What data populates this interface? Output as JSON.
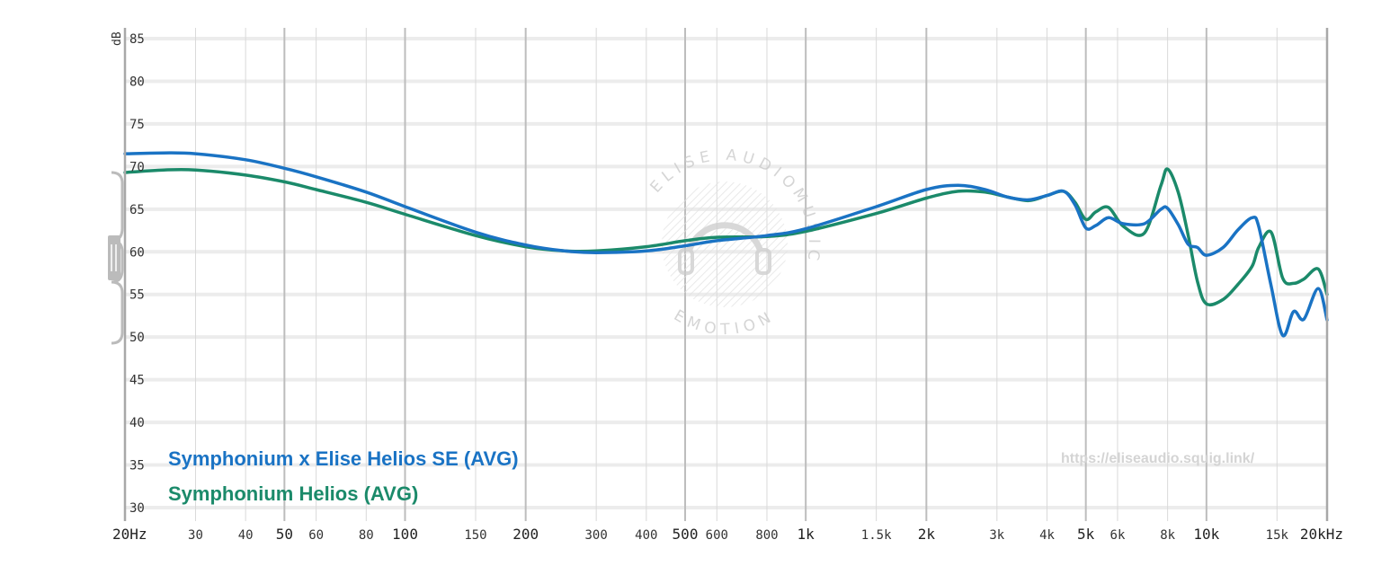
{
  "chart_data": {
    "type": "line",
    "title": "",
    "xlabel": "Hz",
    "ylabel": "dB",
    "x_scale": "log",
    "xlim": [
      20,
      20000
    ],
    "ylim": [
      30,
      86
    ],
    "grid": true,
    "x_ticks": [
      {
        "value": 20,
        "label": "20Hz",
        "major": true
      },
      {
        "value": 30,
        "label": "30",
        "major": false
      },
      {
        "value": 40,
        "label": "40",
        "major": false
      },
      {
        "value": 50,
        "label": "50",
        "major": true
      },
      {
        "value": 60,
        "label": "60",
        "major": false
      },
      {
        "value": 80,
        "label": "80",
        "major": false
      },
      {
        "value": 100,
        "label": "100",
        "major": true
      },
      {
        "value": 150,
        "label": "150",
        "major": false
      },
      {
        "value": 200,
        "label": "200",
        "major": true
      },
      {
        "value": 300,
        "label": "300",
        "major": false
      },
      {
        "value": 400,
        "label": "400",
        "major": false
      },
      {
        "value": 500,
        "label": "500",
        "major": true
      },
      {
        "value": 600,
        "label": "600",
        "major": false
      },
      {
        "value": 800,
        "label": "800",
        "major": false
      },
      {
        "value": 1000,
        "label": "1k",
        "major": true
      },
      {
        "value": 1500,
        "label": "1.5k",
        "major": false
      },
      {
        "value": 2000,
        "label": "2k",
        "major": true
      },
      {
        "value": 3000,
        "label": "3k",
        "major": false
      },
      {
        "value": 4000,
        "label": "4k",
        "major": false
      },
      {
        "value": 5000,
        "label": "5k",
        "major": true
      },
      {
        "value": 6000,
        "label": "6k",
        "major": false
      },
      {
        "value": 8000,
        "label": "8k",
        "major": false
      },
      {
        "value": 10000,
        "label": "10k",
        "major": true
      },
      {
        "value": 15000,
        "label": "15k",
        "major": false
      },
      {
        "value": 20000,
        "label": "20kHz",
        "major": true
      }
    ],
    "y_ticks": [
      30,
      35,
      40,
      45,
      50,
      55,
      60,
      65,
      70,
      75,
      80,
      85
    ],
    "legend_position": "bottom-left",
    "series": [
      {
        "name": "Symphonium x Elise Helios SE (AVG)",
        "color": "#1a73c4",
        "points": [
          [
            20,
            71.5
          ],
          [
            25,
            71.6
          ],
          [
            30,
            71.5
          ],
          [
            40,
            70.8
          ],
          [
            50,
            69.8
          ],
          [
            60,
            68.8
          ],
          [
            80,
            67.0
          ],
          [
            100,
            65.3
          ],
          [
            150,
            62.3
          ],
          [
            200,
            60.8
          ],
          [
            250,
            60.1
          ],
          [
            300,
            59.9
          ],
          [
            400,
            60.1
          ],
          [
            500,
            60.7
          ],
          [
            600,
            61.3
          ],
          [
            800,
            61.9
          ],
          [
            1000,
            62.7
          ],
          [
            1500,
            65.3
          ],
          [
            2000,
            67.3
          ],
          [
            2400,
            67.8
          ],
          [
            2800,
            67.3
          ],
          [
            3200,
            66.4
          ],
          [
            3600,
            66.1
          ],
          [
            4000,
            66.6
          ],
          [
            4400,
            67.1
          ],
          [
            4700,
            65.5
          ],
          [
            5000,
            62.8
          ],
          [
            5300,
            63.1
          ],
          [
            5700,
            64.0
          ],
          [
            6200,
            63.3
          ],
          [
            7000,
            63.3
          ],
          [
            7700,
            65.0
          ],
          [
            8000,
            65.1
          ],
          [
            8500,
            63.2
          ],
          [
            9000,
            60.9
          ],
          [
            9500,
            60.5
          ],
          [
            10000,
            59.6
          ],
          [
            11000,
            60.5
          ],
          [
            12000,
            62.6
          ],
          [
            13000,
            64.0
          ],
          [
            13500,
            63.0
          ],
          [
            14500,
            56.0
          ],
          [
            15500,
            50.2
          ],
          [
            16500,
            53.0
          ],
          [
            17500,
            52.1
          ],
          [
            19000,
            55.7
          ],
          [
            20000,
            52.0
          ]
        ]
      },
      {
        "name": "Symphonium Helios (AVG)",
        "color": "#1b8a6a",
        "points": [
          [
            20,
            69.3
          ],
          [
            25,
            69.6
          ],
          [
            30,
            69.6
          ],
          [
            40,
            69.0
          ],
          [
            50,
            68.2
          ],
          [
            60,
            67.3
          ],
          [
            80,
            65.8
          ],
          [
            100,
            64.4
          ],
          [
            150,
            61.9
          ],
          [
            200,
            60.6
          ],
          [
            250,
            60.1
          ],
          [
            300,
            60.1
          ],
          [
            400,
            60.6
          ],
          [
            500,
            61.3
          ],
          [
            600,
            61.7
          ],
          [
            800,
            61.8
          ],
          [
            1000,
            62.4
          ],
          [
            1500,
            64.5
          ],
          [
            2000,
            66.3
          ],
          [
            2400,
            67.1
          ],
          [
            2800,
            67.0
          ],
          [
            3200,
            66.4
          ],
          [
            3600,
            66.0
          ],
          [
            4000,
            66.6
          ],
          [
            4400,
            67.1
          ],
          [
            4700,
            65.8
          ],
          [
            5000,
            63.8
          ],
          [
            5300,
            64.7
          ],
          [
            5700,
            65.2
          ],
          [
            6200,
            63.0
          ],
          [
            7000,
            62.2
          ],
          [
            7700,
            67.8
          ],
          [
            8000,
            69.7
          ],
          [
            8500,
            67.0
          ],
          [
            9000,
            62.0
          ],
          [
            9500,
            56.5
          ],
          [
            10000,
            53.9
          ],
          [
            11000,
            54.4
          ],
          [
            12000,
            56.2
          ],
          [
            13000,
            58.3
          ],
          [
            13500,
            60.5
          ],
          [
            14500,
            62.3
          ],
          [
            15500,
            56.9
          ],
          [
            16500,
            56.3
          ],
          [
            17500,
            56.8
          ],
          [
            19000,
            58.0
          ],
          [
            20000,
            55.0
          ]
        ]
      }
    ],
    "watermark_url": "https://eliseaudio.squig.link/",
    "logo_text": {
      "top": "ELISE AUDIO",
      "bottom": "EMOTION",
      "right": "MUSIC"
    }
  }
}
